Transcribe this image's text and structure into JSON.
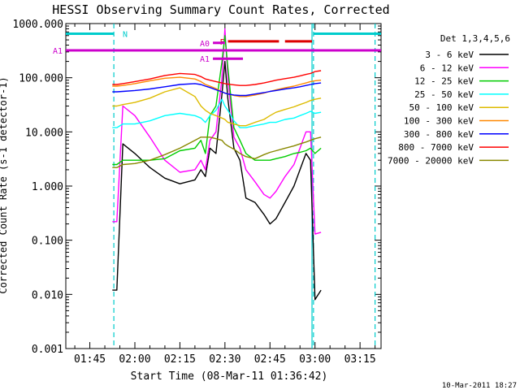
{
  "chart_data": {
    "type": "line",
    "title": "HESSI Observing Summary Count Rates, Corrected",
    "xlabel": "Start Time (08-Mar-11 01:36:42)",
    "ylabel": "Corrected Count Rate (s-1 detector-1)",
    "timestamp": "10-Mar-2011 18:27",
    "legend_title": "Det 1,3,4,5,6",
    "y_scale": "log",
    "ylim": [
      0.001,
      1000
    ],
    "xlim_minutes": [
      97,
      202
    ],
    "x_ticks": [
      {
        "label": "01:45",
        "value": 105
      },
      {
        "label": "02:00",
        "value": 120
      },
      {
        "label": "02:15",
        "value": 135
      },
      {
        "label": "02:30",
        "value": 150
      },
      {
        "label": "02:45",
        "value": 165
      },
      {
        "label": "03:00",
        "value": 180
      },
      {
        "label": "03:15",
        "value": 195
      }
    ],
    "y_ticks": [
      {
        "label": "1000.000",
        "value": 1000
      },
      {
        "label": "100.000",
        "value": 100
      },
      {
        "label": "10.000",
        "value": 10
      },
      {
        "label": "1.000",
        "value": 1
      },
      {
        "label": "0.100",
        "value": 0.1
      },
      {
        "label": "0.010",
        "value": 0.01
      },
      {
        "label": "0.001",
        "value": 0.001
      }
    ],
    "series": [
      {
        "name": "3 - 6 keV",
        "color": "#000000",
        "points": [
          [
            112.5,
            0.012
          ],
          [
            114,
            0.012
          ],
          [
            116,
            6
          ],
          [
            120,
            4
          ],
          [
            125,
            2.2
          ],
          [
            130,
            1.4
          ],
          [
            135,
            1.1
          ],
          [
            140,
            1.3
          ],
          [
            142,
            2
          ],
          [
            143.5,
            1.5
          ],
          [
            145,
            5
          ],
          [
            147,
            4
          ],
          [
            149,
            50
          ],
          [
            150,
            200
          ],
          [
            151,
            40
          ],
          [
            153,
            5
          ],
          [
            155,
            3
          ],
          [
            157,
            0.6
          ],
          [
            160,
            0.5
          ],
          [
            163,
            0.3
          ],
          [
            165,
            0.2
          ],
          [
            167,
            0.25
          ],
          [
            170,
            0.5
          ],
          [
            173,
            1
          ],
          [
            175,
            2
          ],
          [
            177,
            4
          ],
          [
            178.5,
            3
          ],
          [
            180,
            0.008
          ],
          [
            182,
            0.012
          ]
        ]
      },
      {
        "name": "6 - 12 keV",
        "color": "#ff00ff",
        "points": [
          [
            112.5,
            0.22
          ],
          [
            114,
            0.22
          ],
          [
            116,
            30
          ],
          [
            120,
            20
          ],
          [
            125,
            8
          ],
          [
            130,
            3
          ],
          [
            135,
            1.8
          ],
          [
            140,
            2
          ],
          [
            142,
            3
          ],
          [
            143.5,
            2
          ],
          [
            145,
            7
          ],
          [
            147,
            10
          ],
          [
            149,
            100
          ],
          [
            150,
            800
          ],
          [
            151,
            100
          ],
          [
            153,
            8
          ],
          [
            155,
            5
          ],
          [
            157,
            2
          ],
          [
            160,
            1.2
          ],
          [
            163,
            0.7
          ],
          [
            165,
            0.6
          ],
          [
            167,
            0.8
          ],
          [
            170,
            1.5
          ],
          [
            173,
            2.5
          ],
          [
            175,
            5
          ],
          [
            177,
            10
          ],
          [
            178.5,
            10
          ],
          [
            180,
            0.13
          ],
          [
            182,
            0.14
          ]
        ]
      },
      {
        "name": "12 - 25 keV",
        "color": "#00cc00",
        "points": [
          [
            112.5,
            2.5
          ],
          [
            114,
            2.5
          ],
          [
            116,
            3
          ],
          [
            120,
            3
          ],
          [
            125,
            3
          ],
          [
            130,
            3.2
          ],
          [
            135,
            4.5
          ],
          [
            140,
            5
          ],
          [
            142,
            7
          ],
          [
            143.5,
            4
          ],
          [
            145,
            20
          ],
          [
            147,
            30
          ],
          [
            149,
            200
          ],
          [
            150,
            600
          ],
          [
            151,
            150
          ],
          [
            153,
            12
          ],
          [
            155,
            7
          ],
          [
            157,
            4
          ],
          [
            160,
            3
          ],
          [
            163,
            3
          ],
          [
            165,
            3
          ],
          [
            167,
            3.2
          ],
          [
            170,
            3.5
          ],
          [
            173,
            4
          ],
          [
            175,
            4.2
          ],
          [
            177,
            4.5
          ],
          [
            178.5,
            5
          ],
          [
            180,
            4
          ],
          [
            182,
            5
          ]
        ]
      },
      {
        "name": "25 - 50 keV",
        "color": "#00ffff",
        "points": [
          [
            112.5,
            12
          ],
          [
            114,
            12
          ],
          [
            116,
            14
          ],
          [
            120,
            14
          ],
          [
            125,
            16
          ],
          [
            130,
            20
          ],
          [
            135,
            22
          ],
          [
            140,
            20
          ],
          [
            142,
            18
          ],
          [
            143.5,
            15
          ],
          [
            145,
            20
          ],
          [
            147,
            25
          ],
          [
            149,
            40
          ],
          [
            150,
            30
          ],
          [
            151,
            25
          ],
          [
            153,
            16
          ],
          [
            155,
            12
          ],
          [
            157,
            12
          ],
          [
            160,
            13
          ],
          [
            163,
            14
          ],
          [
            165,
            15
          ],
          [
            167,
            15
          ],
          [
            170,
            17
          ],
          [
            173,
            18
          ],
          [
            175,
            20
          ],
          [
            177,
            22
          ],
          [
            178.5,
            24
          ],
          [
            180,
            22
          ],
          [
            182,
            23
          ]
        ]
      },
      {
        "name": "50 - 100 keV",
        "color": "#ddbb00",
        "points": [
          [
            112.5,
            30
          ],
          [
            114,
            30
          ],
          [
            116,
            32
          ],
          [
            120,
            35
          ],
          [
            125,
            42
          ],
          [
            130,
            55
          ],
          [
            135,
            65
          ],
          [
            140,
            45
          ],
          [
            142,
            30
          ],
          [
            143.5,
            25
          ],
          [
            145,
            22
          ],
          [
            147,
            20
          ],
          [
            149,
            18
          ],
          [
            150,
            17
          ],
          [
            151,
            15
          ],
          [
            153,
            14
          ],
          [
            155,
            13
          ],
          [
            157,
            13
          ],
          [
            160,
            15
          ],
          [
            163,
            17
          ],
          [
            165,
            20
          ],
          [
            167,
            23
          ],
          [
            170,
            26
          ],
          [
            173,
            29
          ],
          [
            175,
            32
          ],
          [
            177,
            35
          ],
          [
            178.5,
            38
          ],
          [
            180,
            40
          ],
          [
            182,
            42
          ]
        ]
      },
      {
        "name": "100 - 300 keV",
        "color": "#ff8800",
        "points": [
          [
            112.5,
            70
          ],
          [
            114,
            70
          ],
          [
            116,
            72
          ],
          [
            120,
            78
          ],
          [
            125,
            88
          ],
          [
            130,
            98
          ],
          [
            135,
            102
          ],
          [
            140,
            95
          ],
          [
            142,
            85
          ],
          [
            143.5,
            75
          ],
          [
            145,
            70
          ],
          [
            147,
            63
          ],
          [
            149,
            55
          ],
          [
            150,
            52
          ],
          [
            151,
            50
          ],
          [
            153,
            47
          ],
          [
            155,
            45
          ],
          [
            157,
            45
          ],
          [
            160,
            48
          ],
          [
            163,
            52
          ],
          [
            165,
            56
          ],
          [
            167,
            60
          ],
          [
            170,
            65
          ],
          [
            173,
            70
          ],
          [
            175,
            75
          ],
          [
            177,
            80
          ],
          [
            178.5,
            85
          ],
          [
            180,
            88
          ],
          [
            182,
            90
          ]
        ]
      },
      {
        "name": "300 - 800 keV",
        "color": "#0000ff",
        "points": [
          [
            112.5,
            55
          ],
          [
            114,
            55
          ],
          [
            116,
            56
          ],
          [
            120,
            58
          ],
          [
            125,
            62
          ],
          [
            130,
            68
          ],
          [
            135,
            75
          ],
          [
            140,
            78
          ],
          [
            142,
            75
          ],
          [
            143.5,
            70
          ],
          [
            145,
            66
          ],
          [
            147,
            60
          ],
          [
            149,
            55
          ],
          [
            150,
            52
          ],
          [
            151,
            50
          ],
          [
            153,
            48
          ],
          [
            155,
            47
          ],
          [
            157,
            47
          ],
          [
            160,
            50
          ],
          [
            163,
            53
          ],
          [
            165,
            56
          ],
          [
            167,
            58
          ],
          [
            170,
            62
          ],
          [
            173,
            65
          ],
          [
            175,
            68
          ],
          [
            177,
            72
          ],
          [
            178.5,
            75
          ],
          [
            180,
            78
          ],
          [
            182,
            80
          ]
        ]
      },
      {
        "name": "800 - 7000 keV",
        "color": "#ff0000",
        "points": [
          [
            112.5,
            75
          ],
          [
            114,
            75
          ],
          [
            116,
            78
          ],
          [
            120,
            85
          ],
          [
            125,
            95
          ],
          [
            130,
            110
          ],
          [
            135,
            120
          ],
          [
            140,
            115
          ],
          [
            142,
            105
          ],
          [
            143.5,
            95
          ],
          [
            145,
            90
          ],
          [
            147,
            85
          ],
          [
            149,
            80
          ],
          [
            150,
            78
          ],
          [
            151,
            76
          ],
          [
            153,
            74
          ],
          [
            155,
            72
          ],
          [
            157,
            72
          ],
          [
            160,
            75
          ],
          [
            163,
            80
          ],
          [
            165,
            85
          ],
          [
            167,
            90
          ],
          [
            170,
            96
          ],
          [
            173,
            102
          ],
          [
            175,
            108
          ],
          [
            177,
            115
          ],
          [
            178.5,
            120
          ],
          [
            180,
            130
          ],
          [
            182,
            135
          ]
        ]
      },
      {
        "name": "7000 - 20000 keV",
        "color": "#888800",
        "points": [
          [
            112.5,
            2.2
          ],
          [
            114,
            2.2
          ],
          [
            116,
            2.5
          ],
          [
            120,
            2.6
          ],
          [
            125,
            3
          ],
          [
            130,
            3.8
          ],
          [
            135,
            5
          ],
          [
            140,
            7
          ],
          [
            142,
            8
          ],
          [
            143.5,
            8
          ],
          [
            145,
            8
          ],
          [
            147,
            7.5
          ],
          [
            149,
            7
          ],
          [
            150,
            6
          ],
          [
            151,
            5.5
          ],
          [
            153,
            4.8
          ],
          [
            155,
            4
          ],
          [
            157,
            3.5
          ],
          [
            160,
            3.2
          ],
          [
            163,
            3.8
          ],
          [
            165,
            4.2
          ],
          [
            167,
            4.5
          ],
          [
            170,
            5
          ],
          [
            173,
            5.5
          ],
          [
            175,
            6
          ],
          [
            177,
            6.5
          ],
          [
            178.5,
            7
          ],
          [
            180,
            7.5
          ],
          [
            182,
            8
          ]
        ]
      }
    ],
    "flags": [
      {
        "label": "N",
        "color": "#00cccc",
        "segments": [
          [
            97,
            113
          ],
          [
            179.5,
            202
          ]
        ],
        "y": 650
      },
      {
        "label": "F",
        "color": "#dd0000",
        "segments": [
          [
            151,
            168
          ],
          [
            170,
            179
          ]
        ],
        "y": 470
      },
      {
        "label": "A1",
        "color": "#cc00cc",
        "segments": [
          [
            97,
            202
          ]
        ],
        "y": 320
      },
      {
        "label": "A0",
        "color": "#cc00cc",
        "segments": [
          [
            146,
            150
          ]
        ],
        "y": 440
      },
      {
        "label": "A1",
        "color": "#cc00cc",
        "segments": [
          [
            146,
            156
          ]
        ],
        "y": 225
      }
    ],
    "vlines": [
      {
        "x": 113,
        "color": "#00cccc",
        "dashed": true
      },
      {
        "x": 179.5,
        "color": "#00cccc",
        "dashed": true
      },
      {
        "x": 179,
        "color": "#00cccc",
        "dashed": false
      },
      {
        "x": 200,
        "color": "#00cccc",
        "dashed": true
      }
    ]
  }
}
